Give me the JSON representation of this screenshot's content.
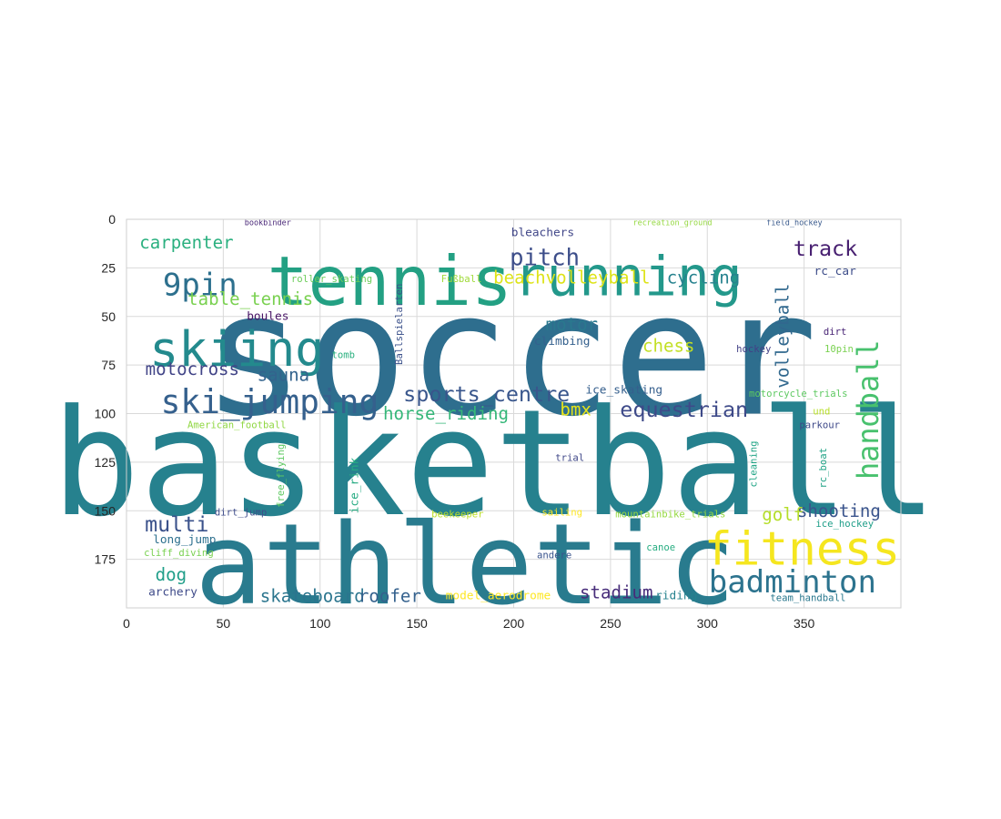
{
  "chart_data": {
    "type": "wordcloud",
    "title": "",
    "xlabel": "",
    "ylabel": "",
    "xlim": [
      0,
      400
    ],
    "ylim": [
      200,
      0
    ],
    "xticks": [
      0,
      50,
      100,
      150,
      200,
      250,
      300,
      350
    ],
    "yticks": [
      0,
      25,
      50,
      75,
      100,
      125,
      150,
      175
    ],
    "grid": true,
    "colors": {
      "grid": "#d9d9d9",
      "frame": "#cfcfcf",
      "background": "#ffffff"
    },
    "words": [
      {
        "text": "soccer",
        "x": 198,
        "y": 70,
        "size": 88,
        "color": "#2e6e8e",
        "rotate": 0
      },
      {
        "text": "basketball",
        "x": 190,
        "y": 126,
        "size": 76,
        "color": "#26818e",
        "rotate": 0
      },
      {
        "text": "athletic",
        "x": 175,
        "y": 178,
        "size": 58,
        "color": "#297b8e",
        "rotate": 0
      },
      {
        "text": "tennis",
        "x": 136,
        "y": 32,
        "size": 35,
        "color": "#23a083",
        "rotate": 0
      },
      {
        "text": "running",
        "x": 259,
        "y": 30,
        "size": 28,
        "color": "#23988b",
        "rotate": 0
      },
      {
        "text": "skiing",
        "x": 57,
        "y": 67,
        "size": 25,
        "color": "#238a8d",
        "rotate": 0
      },
      {
        "text": "fitness",
        "x": 349,
        "y": 170,
        "size": 24,
        "color": "#f5e61f",
        "rotate": 0
      },
      {
        "text": "badminton",
        "x": 344,
        "y": 187,
        "size": 16,
        "color": "#2c738e",
        "rotate": 0
      },
      {
        "text": "ski_jumping",
        "x": 74,
        "y": 94,
        "size": 17,
        "color": "#35608d",
        "rotate": 0
      },
      {
        "text": "9pin",
        "x": 38,
        "y": 34,
        "size": 16,
        "color": "#2d708e",
        "rotate": 0
      },
      {
        "text": "handball",
        "x": 383,
        "y": 98,
        "size": 15,
        "color": "#48c16e",
        "rotate": -90
      },
      {
        "text": "pitch",
        "x": 216,
        "y": 20,
        "size": 12,
        "color": "#3d4e8a",
        "rotate": 0
      },
      {
        "text": "track",
        "x": 361,
        "y": 15,
        "size": 11,
        "color": "#482071",
        "rotate": 0
      },
      {
        "text": "sports_centre",
        "x": 186,
        "y": 90,
        "size": 11,
        "color": "#39568c",
        "rotate": 0
      },
      {
        "text": "equestrian",
        "x": 288,
        "y": 98,
        "size": 11,
        "color": "#3e4a89",
        "rotate": 0
      },
      {
        "text": "multi",
        "x": 26,
        "y": 157,
        "size": 11,
        "color": "#3b528b",
        "rotate": 0
      },
      {
        "text": "beachvolleyball",
        "x": 230,
        "y": 30,
        "size": 9,
        "color": "#dde318",
        "rotate": 0
      },
      {
        "text": "table_tennis",
        "x": 64,
        "y": 41,
        "size": 9,
        "color": "#7ad151",
        "rotate": 0
      },
      {
        "text": "carpenter",
        "x": 31,
        "y": 12,
        "size": 9,
        "color": "#2ab07f",
        "rotate": 0
      },
      {
        "text": "motocross",
        "x": 34,
        "y": 77,
        "size": 9,
        "color": "#414487",
        "rotate": 0
      },
      {
        "text": "sauna",
        "x": 81,
        "y": 80,
        "size": 9,
        "color": "#33638d",
        "rotate": 0
      },
      {
        "text": "horse_riding",
        "x": 165,
        "y": 100,
        "size": 9,
        "color": "#35b779",
        "rotate": 0
      },
      {
        "text": "volleyball",
        "x": 339,
        "y": 60,
        "size": 9,
        "color": "#31688e",
        "rotate": -90
      },
      {
        "text": "cycling",
        "x": 298,
        "y": 30,
        "size": 9,
        "color": "#26828e",
        "rotate": 0
      },
      {
        "text": "chess",
        "x": 280,
        "y": 65,
        "size": 9,
        "color": "#c2df23",
        "rotate": 0
      },
      {
        "text": "motor",
        "x": 230,
        "y": 54,
        "size": 9,
        "color": "#2a788e",
        "rotate": 0
      },
      {
        "text": "shooting",
        "x": 368,
        "y": 150,
        "size": 9,
        "color": "#3a548c",
        "rotate": 0
      },
      {
        "text": "golf",
        "x": 339,
        "y": 152,
        "size": 9,
        "color": "#b5de2b",
        "rotate": 0
      },
      {
        "text": "bmx",
        "x": 232,
        "y": 98,
        "size": 9,
        "color": "#e5e419",
        "rotate": 0
      },
      {
        "text": "dog",
        "x": 23,
        "y": 183,
        "size": 9,
        "color": "#1f9e89",
        "rotate": 0
      },
      {
        "text": "stadium",
        "x": 253,
        "y": 192,
        "size": 9,
        "color": "#472c7a",
        "rotate": 0
      },
      {
        "text": "skateboard",
        "x": 96,
        "y": 194,
        "size": 9,
        "color": "#2b758e",
        "rotate": 0
      },
      {
        "text": "roofer",
        "x": 136,
        "y": 194,
        "size": 9,
        "color": "#34618d",
        "rotate": 0
      },
      {
        "text": "bleachers",
        "x": 215,
        "y": 7,
        "size": 6,
        "color": "#404688",
        "rotate": 0
      },
      {
        "text": "rc_car",
        "x": 366,
        "y": 27,
        "size": 6,
        "color": "#3d4d8a",
        "rotate": 0
      },
      {
        "text": "boules",
        "x": 73,
        "y": 50,
        "size": 6,
        "color": "#471365",
        "rotate": 0
      },
      {
        "text": "climbing",
        "x": 225,
        "y": 63,
        "size": 6,
        "color": "#34608d",
        "rotate": 0
      },
      {
        "text": "ice_skating",
        "x": 257,
        "y": 88,
        "size": 6,
        "color": "#355f8d",
        "rotate": 0
      },
      {
        "text": "motorcycle_trials",
        "x": 347,
        "y": 90,
        "size": 5,
        "color": "#5ec962",
        "rotate": 0
      },
      {
        "text": "hockey",
        "x": 324,
        "y": 67,
        "size": 5,
        "color": "#424086",
        "rotate": 0
      },
      {
        "text": "10pin",
        "x": 368,
        "y": 67,
        "size": 5,
        "color": "#7ad151",
        "rotate": 0
      },
      {
        "text": "dirt",
        "x": 366,
        "y": 58,
        "size": 5,
        "color": "#482475",
        "rotate": 0
      },
      {
        "text": "parkour",
        "x": 358,
        "y": 106,
        "size": 5,
        "color": "#3e4989",
        "rotate": 0
      },
      {
        "text": "tomb",
        "x": 112,
        "y": 70,
        "size": 5,
        "color": "#2ab07f",
        "rotate": 0
      },
      {
        "text": "Ballspielarten",
        "x": 141,
        "y": 54,
        "size": 5,
        "color": "#3b518b",
        "rotate": -90
      },
      {
        "text": "American_football",
        "x": 57,
        "y": 106,
        "size": 5,
        "color": "#90d743",
        "rotate": 0
      },
      {
        "text": "Fußball",
        "x": 173,
        "y": 31,
        "size": 5,
        "color": "#a0da39",
        "rotate": 0
      },
      {
        "text": "roller_skating",
        "x": 106,
        "y": 31,
        "size": 5,
        "color": "#6ccd5a",
        "rotate": 0
      },
      {
        "text": "bookbinder",
        "x": 73,
        "y": 2,
        "size": 4,
        "color": "#482677",
        "rotate": 0
      },
      {
        "text": "recreation_ground",
        "x": 282,
        "y": 2,
        "size": 4,
        "color": "#95d840",
        "rotate": 0
      },
      {
        "text": "field_hockey",
        "x": 345,
        "y": 2,
        "size": 4,
        "color": "#38598c",
        "rotate": 0
      },
      {
        "text": "free_flying",
        "x": 80,
        "y": 132,
        "size": 5,
        "color": "#5ec962",
        "rotate": -90
      },
      {
        "text": "ice_rink",
        "x": 118,
        "y": 137,
        "size": 6,
        "color": "#25ab82",
        "rotate": -90
      },
      {
        "text": "trial",
        "x": 229,
        "y": 123,
        "size": 5,
        "color": "#3f4788",
        "rotate": 0
      },
      {
        "text": "cleaning",
        "x": 324,
        "y": 126,
        "size": 5,
        "color": "#20a486",
        "rotate": -90
      },
      {
        "text": "rc_boat",
        "x": 360,
        "y": 128,
        "size": 5,
        "color": "#20a386",
        "rotate": -90
      },
      {
        "text": "und",
        "x": 359,
        "y": 99,
        "size": 5,
        "color": "#b8de29",
        "rotate": 0
      },
      {
        "text": "dirt_jump",
        "x": 59,
        "y": 151,
        "size": 5,
        "color": "#3e4c8a",
        "rotate": 0
      },
      {
        "text": "long_jump",
        "x": 30,
        "y": 165,
        "size": 6,
        "color": "#2d708e",
        "rotate": 0
      },
      {
        "text": "cliff_diving",
        "x": 27,
        "y": 172,
        "size": 5,
        "color": "#7ad151",
        "rotate": 0
      },
      {
        "text": "archery",
        "x": 24,
        "y": 192,
        "size": 6,
        "color": "#3e4a89",
        "rotate": 0
      },
      {
        "text": "beekeeper",
        "x": 171,
        "y": 152,
        "size": 5,
        "color": "#bddf26",
        "rotate": 0
      },
      {
        "text": "sailing",
        "x": 225,
        "y": 151,
        "size": 5,
        "color": "#fde725",
        "rotate": 0
      },
      {
        "text": "mountainbike_trials",
        "x": 281,
        "y": 152,
        "size": 5,
        "color": "#95d840",
        "rotate": 0
      },
      {
        "text": "ice_hockey",
        "x": 371,
        "y": 157,
        "size": 5,
        "color": "#1f9e89",
        "rotate": 0
      },
      {
        "text": "canoe",
        "x": 276,
        "y": 169,
        "size": 5,
        "color": "#27ad81",
        "rotate": 0
      },
      {
        "text": "andere",
        "x": 221,
        "y": 173,
        "size": 5,
        "color": "#3a548c",
        "rotate": 0
      },
      {
        "text": "model_aerodrome",
        "x": 192,
        "y": 194,
        "size": 6,
        "color": "#fde725",
        "rotate": 0
      },
      {
        "text": "riding",
        "x": 284,
        "y": 194,
        "size": 6,
        "color": "#26828e",
        "rotate": 0
      },
      {
        "text": "team_handball",
        "x": 352,
        "y": 195,
        "size": 5,
        "color": "#2a788e",
        "rotate": 0
      }
    ]
  }
}
